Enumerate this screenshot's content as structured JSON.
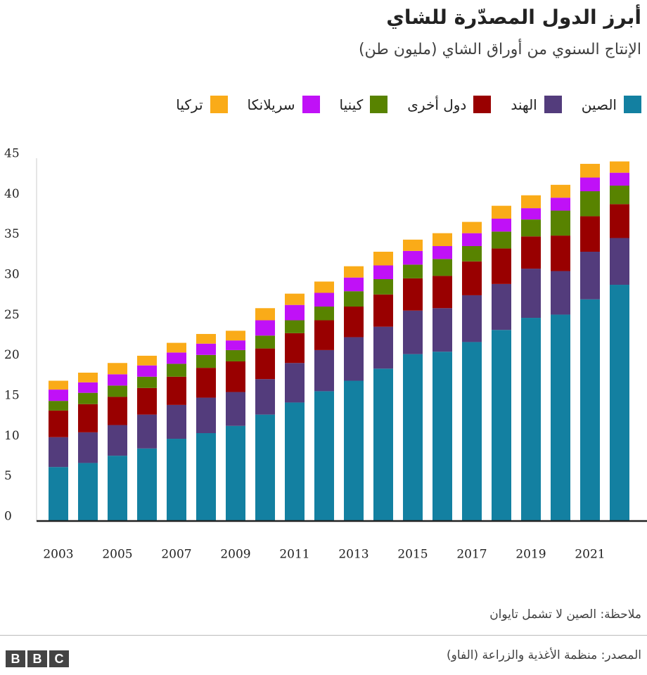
{
  "chart_data": {
    "type": "bar",
    "stacked": true,
    "title": "أبرز الدول المصدّرة للشاي",
    "subtitle": "الإنتاج السنوي من أوراق الشاي (مليون طن)",
    "note": "ملاحظة: الصين لا تشمل تايوان",
    "source": "المصدر: منظمة الأغذية والزراعة (الفاو)",
    "categories": [
      "2003",
      null,
      "2005",
      null,
      "2007",
      null,
      "2009",
      null,
      "2011",
      null,
      "2013",
      null,
      "2015",
      null,
      "2017",
      null,
      "2019",
      null,
      "2021",
      null
    ],
    "series": [
      {
        "name": "الصين",
        "color": "#1380a1",
        "values": [
          6.7,
          7.2,
          8.1,
          9.0,
          10.2,
          10.9,
          11.8,
          13.2,
          14.7,
          16.1,
          17.4,
          18.9,
          20.7,
          21.0,
          22.2,
          23.7,
          25.2,
          25.6,
          27.5,
          29.3
        ]
      },
      {
        "name": "الهند",
        "color": "#533c7c",
        "values": [
          3.7,
          3.8,
          3.8,
          4.2,
          4.2,
          4.4,
          4.2,
          4.4,
          4.9,
          5.1,
          5.4,
          5.2,
          5.4,
          5.4,
          5.8,
          5.7,
          6.1,
          5.4,
          5.9,
          5.8
        ]
      },
      {
        "name": "دول أخرى",
        "color": "#990000",
        "values": [
          3.3,
          3.5,
          3.5,
          3.3,
          3.5,
          3.7,
          3.8,
          3.8,
          3.7,
          3.7,
          3.8,
          4.0,
          4.0,
          4.0,
          4.2,
          4.4,
          4.0,
          4.4,
          4.4,
          4.2
        ]
      },
      {
        "name": "كينيا",
        "color": "#588300",
        "values": [
          1.2,
          1.4,
          1.4,
          1.4,
          1.6,
          1.6,
          1.4,
          1.6,
          1.6,
          1.7,
          1.9,
          1.9,
          1.7,
          2.1,
          1.9,
          2.1,
          2.1,
          3.1,
          3.1,
          2.3
        ]
      },
      {
        "name": "سريلانكا",
        "color": "#c011f7",
        "values": [
          1.4,
          1.3,
          1.4,
          1.4,
          1.4,
          1.4,
          1.2,
          1.9,
          1.9,
          1.7,
          1.7,
          1.7,
          1.7,
          1.6,
          1.6,
          1.6,
          1.4,
          1.6,
          1.7,
          1.6
        ]
      },
      {
        "name": "تركيا",
        "color": "#faab18",
        "values": [
          1.1,
          1.2,
          1.4,
          1.2,
          1.2,
          1.2,
          1.2,
          1.5,
          1.4,
          1.4,
          1.4,
          1.7,
          1.4,
          1.6,
          1.4,
          1.6,
          1.6,
          1.6,
          1.7,
          1.4
        ]
      }
    ],
    "ylim": [
      0,
      45
    ],
    "yticks": [
      0,
      5,
      10,
      15,
      20,
      25,
      30,
      35,
      40,
      45
    ],
    "grid": false
  }
}
